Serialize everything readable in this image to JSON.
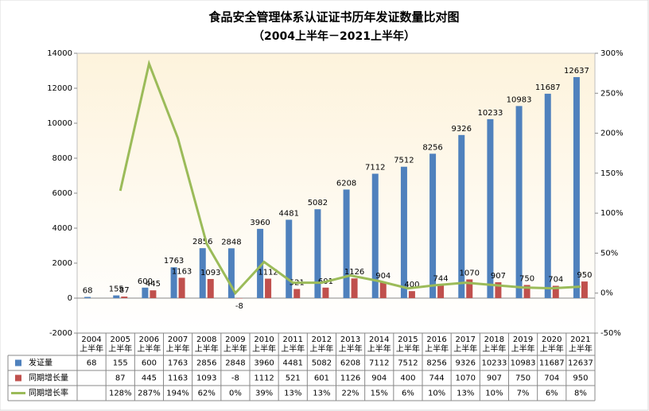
{
  "chart_data": {
    "type": "bar-line-table",
    "title": "食品安全管理体系认证证书历年发证数量比对图",
    "subtitle": "（2004上半年－2021上半年）",
    "categories": [
      "2004上半年",
      "2005上半年",
      "2006上半年",
      "2007上半年",
      "2008上半年",
      "2009上半年",
      "2010上半年",
      "2011上半年",
      "2012上半年",
      "2013上半年",
      "2014上半年",
      "2015上半年",
      "2016上半年",
      "2017上半年",
      "2018上半年",
      "2019上半年",
      "2020上半年",
      "2021上半年"
    ],
    "series": [
      {
        "name": "发证量",
        "type": "bar",
        "color": "#4f81bd",
        "values": [
          68,
          155,
          600,
          1763,
          2856,
          2848,
          3960,
          4481,
          5082,
          6208,
          7112,
          7512,
          8256,
          9326,
          10233,
          10983,
          11687,
          12637
        ]
      },
      {
        "name": "同期增长量",
        "type": "bar",
        "color": "#c0504d",
        "values": [
          null,
          87,
          445,
          1163,
          1093,
          -8,
          1112,
          521,
          601,
          1126,
          904,
          400,
          744,
          1070,
          907,
          750,
          704,
          950
        ]
      },
      {
        "name": "同期增长率",
        "type": "line",
        "axis": "y2",
        "color": "#9bbb59",
        "values": [
          null,
          128,
          287,
          194,
          62,
          0,
          39,
          13,
          13,
          22,
          15,
          6,
          10,
          13,
          10,
          7,
          6,
          8
        ],
        "value_labels": [
          null,
          "128%",
          "287%",
          "194%",
          "62%",
          "0%",
          "39%",
          "13%",
          "13%",
          "22%",
          "15%",
          "6%",
          "10%",
          "13%",
          "10%",
          "7%",
          "6%",
          "8%"
        ]
      }
    ],
    "ylim": [
      -2000,
      14000
    ],
    "yticks": [
      -2000,
      0,
      2000,
      4000,
      6000,
      8000,
      10000,
      12000,
      14000
    ],
    "y2lim": [
      -50,
      300
    ],
    "y2ticks": [
      {
        "value": -50,
        "label": "-50%"
      },
      {
        "value": 0,
        "label": "0%"
      },
      {
        "value": 50,
        "label": "50%"
      },
      {
        "value": 100,
        "label": "100%"
      },
      {
        "value": 150,
        "label": "150%"
      },
      {
        "value": 200,
        "label": "200%"
      },
      {
        "value": 250,
        "label": "250%"
      },
      {
        "value": 300,
        "label": "300%"
      }
    ],
    "grid": false
  }
}
